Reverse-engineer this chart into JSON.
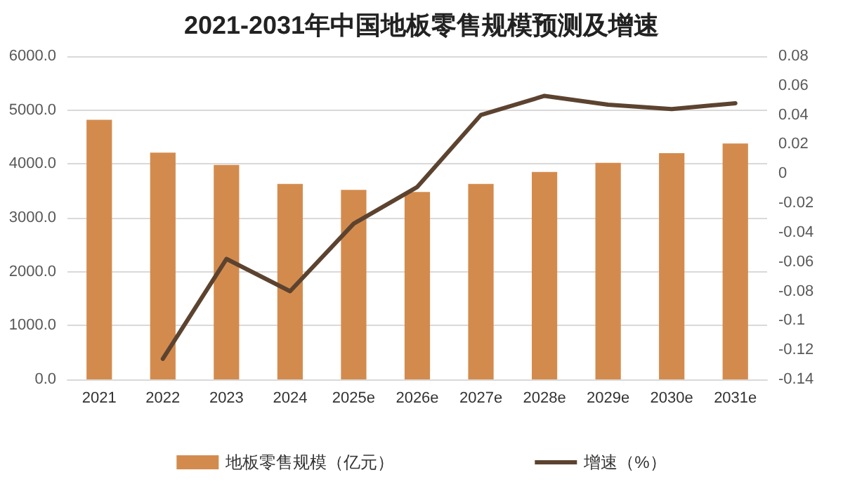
{
  "chart_data": {
    "type": "bar",
    "title": "2021-2031年中国地板零售规模预测及增速",
    "categories": [
      "2021",
      "2022",
      "2023",
      "2024",
      "2025e",
      "2026e",
      "2027e",
      "2028e",
      "2029e",
      "2030e",
      "2031e"
    ],
    "series": [
      {
        "name": "地板零售规模（亿元）",
        "color": "#d38b4d",
        "values": [
          4820,
          4210,
          3980,
          3630,
          3520,
          3480,
          3630,
          3850,
          4020,
          4200,
          4380
        ]
      },
      {
        "name": "增速（%）",
        "type": "line",
        "axis": "y2",
        "color": "#5c4330",
        "values": [
          null,
          -0.126,
          -0.058,
          -0.08,
          -0.034,
          -0.009,
          0.04,
          0.053,
          0.047,
          0.044,
          0.048
        ]
      }
    ],
    "ylim": [
      0,
      6000
    ],
    "yticks": [
      {
        "value": 0,
        "label": "0.0"
      },
      {
        "value": 1000,
        "label": "1000.0"
      },
      {
        "value": 2000,
        "label": "2000.0"
      },
      {
        "value": 3000,
        "label": "3000.0"
      },
      {
        "value": 4000,
        "label": "4000.0"
      },
      {
        "value": 5000,
        "label": "5000.0"
      },
      {
        "value": 6000,
        "label": "6000.0"
      }
    ],
    "y2lim": [
      -0.14,
      0.08
    ],
    "y2ticks": [
      -0.14,
      -0.12,
      -0.1,
      -0.08,
      -0.06,
      -0.04,
      -0.02,
      0,
      0.02,
      0.04,
      0.06,
      0.08
    ],
    "grid": "y",
    "legend": "bottom",
    "marker": "none",
    "line_style": "solid"
  }
}
